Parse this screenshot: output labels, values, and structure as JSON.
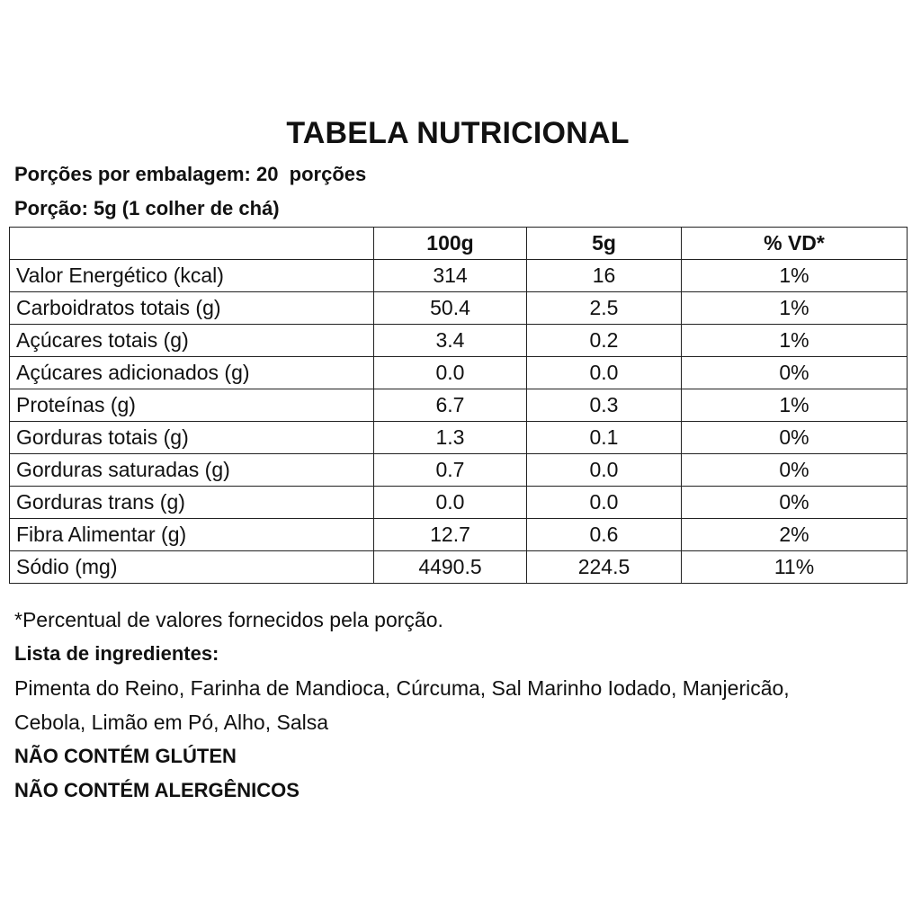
{
  "title": "TABELA NUTRICIONAL",
  "servings_per_package": "Porções por embalagem: 20  porções",
  "portion": "Porção: 5g (1 colher de chá)",
  "table": {
    "headers": [
      "",
      "100g",
      "5g",
      "% VD*"
    ],
    "rows": [
      {
        "label": "Valor Energético (kcal)",
        "per100g": "314",
        "per5g": "16",
        "vd": "1%"
      },
      {
        "label": "Carboidratos totais (g)",
        "per100g": "50.4",
        "per5g": "2.5",
        "vd": "1%"
      },
      {
        "label": "Açúcares totais (g)",
        "per100g": "3.4",
        "per5g": "0.2",
        "vd": "1%"
      },
      {
        "label": "Açúcares adicionados (g)",
        "per100g": "0.0",
        "per5g": "0.0",
        "vd": "0%"
      },
      {
        "label": "Proteínas (g)",
        "per100g": "6.7",
        "per5g": "0.3",
        "vd": "1%"
      },
      {
        "label": "Gorduras totais (g)",
        "per100g": "1.3",
        "per5g": "0.1",
        "vd": "0%"
      },
      {
        "label": "Gorduras saturadas (g)",
        "per100g": "0.7",
        "per5g": "0.0",
        "vd": "0%"
      },
      {
        "label": "Gorduras trans (g)",
        "per100g": "0.0",
        "per5g": "0.0",
        "vd": "0%"
      },
      {
        "label": "Fibra Alimentar (g)",
        "per100g": "12.7",
        "per5g": "0.6",
        "vd": "2%"
      },
      {
        "label": "Sódio (mg)",
        "per100g": "4490.5",
        "per5g": "224.5",
        "vd": "11%"
      }
    ]
  },
  "footnote": "*Percentual de valores fornecidos pela porção.",
  "ingredients_heading": "Lista de ingredientes:",
  "ingredients_text": "Pimenta do Reino, Farinha de Mandioca, Cúrcuma, Sal Marinho Iodado, Manjericão, Cebola, Limão em Pó, Alho, Salsa",
  "warnings": [
    "NÃO CONTÉM GLÚTEN",
    "NÃO CONTÉM ALERGÊNICOS"
  ]
}
